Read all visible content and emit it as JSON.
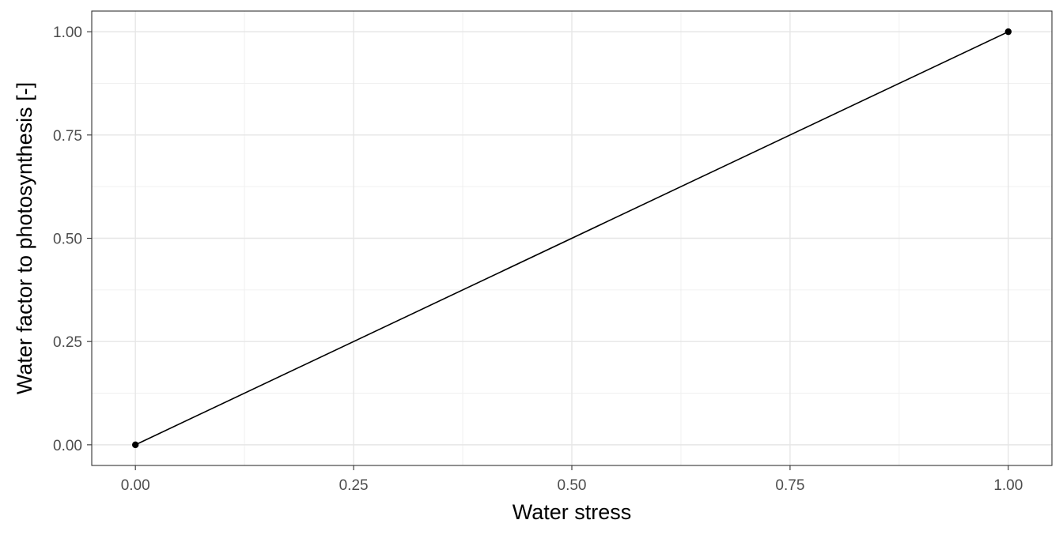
{
  "chart_data": {
    "type": "line",
    "title": "",
    "xlabel": "Water stress",
    "ylabel": "Water factor to photosynthesis [-]",
    "xlim": [
      -0.05,
      1.05
    ],
    "ylim": [
      -0.05,
      1.05
    ],
    "x_ticks": [
      0.0,
      0.25,
      0.5,
      0.75,
      1.0
    ],
    "x_tick_labels": [
      "0.00",
      "0.25",
      "0.50",
      "0.75",
      "1.00"
    ],
    "y_ticks": [
      0.0,
      0.25,
      0.5,
      0.75,
      1.0
    ],
    "y_tick_labels": [
      "0.00",
      "0.25",
      "0.50",
      "0.75",
      "1.00"
    ],
    "grid": true,
    "legend": "none",
    "series": [
      {
        "x": [
          0.0,
          1.0
        ],
        "y": [
          0.0,
          1.0
        ],
        "color": "#000000",
        "markers": true
      }
    ]
  }
}
